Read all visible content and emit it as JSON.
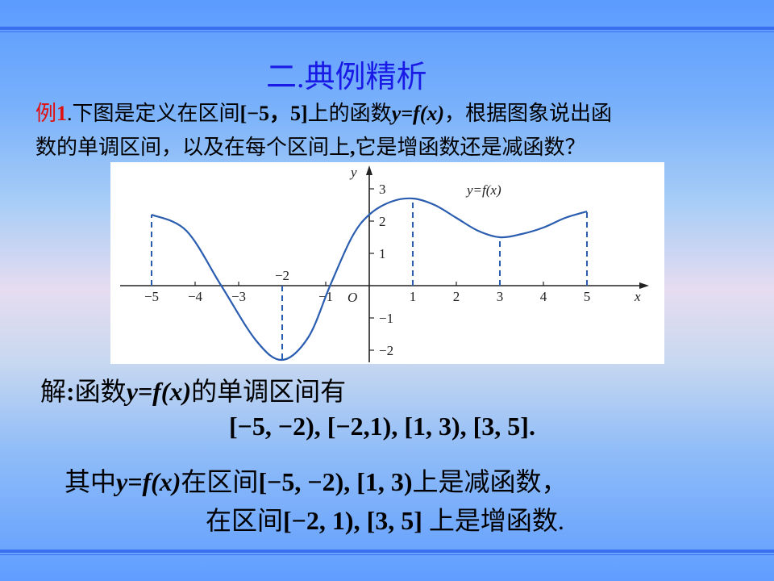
{
  "slide": {
    "title": "二.典例精析",
    "question": {
      "label": "例",
      "number": "1",
      "line1_a": ".下图是定义在区间",
      "interval": "[−5，5]",
      "line1_b": "上的函数",
      "func": "y=f(x)",
      "line1_c": "，根据图象说出函",
      "line2_a": "数的单调区间，以及在每个区间上",
      "line2_comma": ",",
      "line2_b": "它是增函数还是减函数？"
    },
    "answer": {
      "line1_a": "解",
      "line1_colon": ":",
      "line1_b": "函数",
      "func": "y=f(x)",
      "line1_c": "的单调区间有",
      "line2": "[−5, −2), [−2,1), [1, 3), [3, 5].",
      "line3_a": "其中",
      "line3_b": "在区间",
      "line3_intervals": "[−5, −2), [1, 3)",
      "line3_c": "上是减函数，",
      "line4_a": "在区间",
      "line4_intervals": "[−2, 1), [3, 5]",
      "line4_b": " 上是增函数."
    }
  },
  "figure": {
    "curve_label": "y=f(x)",
    "x_axis_label": "x",
    "y_axis_label": "y",
    "origin_label": "O",
    "x_ticks": [
      "−5",
      "−4",
      "−3",
      "−1",
      "1",
      "2",
      "3",
      "4",
      "5"
    ],
    "min_label": "−2",
    "y_ticks": [
      "3",
      "2",
      "1",
      "−1",
      "−2"
    ],
    "curve_color": "#2a5db0",
    "points": [
      [
        -5,
        2.2
      ],
      [
        -4.2,
        1.7
      ],
      [
        -3.4,
        0
      ],
      [
        -2.6,
        -1.7
      ],
      [
        -2,
        -2.3
      ],
      [
        -1.4,
        -1.6
      ],
      [
        -0.9,
        0
      ],
      [
        -0.4,
        1.5
      ],
      [
        0,
        2.2
      ],
      [
        0.5,
        2.6
      ],
      [
        1,
        2.7
      ],
      [
        1.5,
        2.5
      ],
      [
        2,
        2.1
      ],
      [
        2.5,
        1.7
      ],
      [
        3,
        1.5
      ],
      [
        3.5,
        1.6
      ],
      [
        4,
        1.8
      ],
      [
        4.5,
        2.1
      ],
      [
        5,
        2.3
      ]
    ],
    "dashed_x": [
      -5,
      -2,
      1,
      3,
      5
    ]
  }
}
